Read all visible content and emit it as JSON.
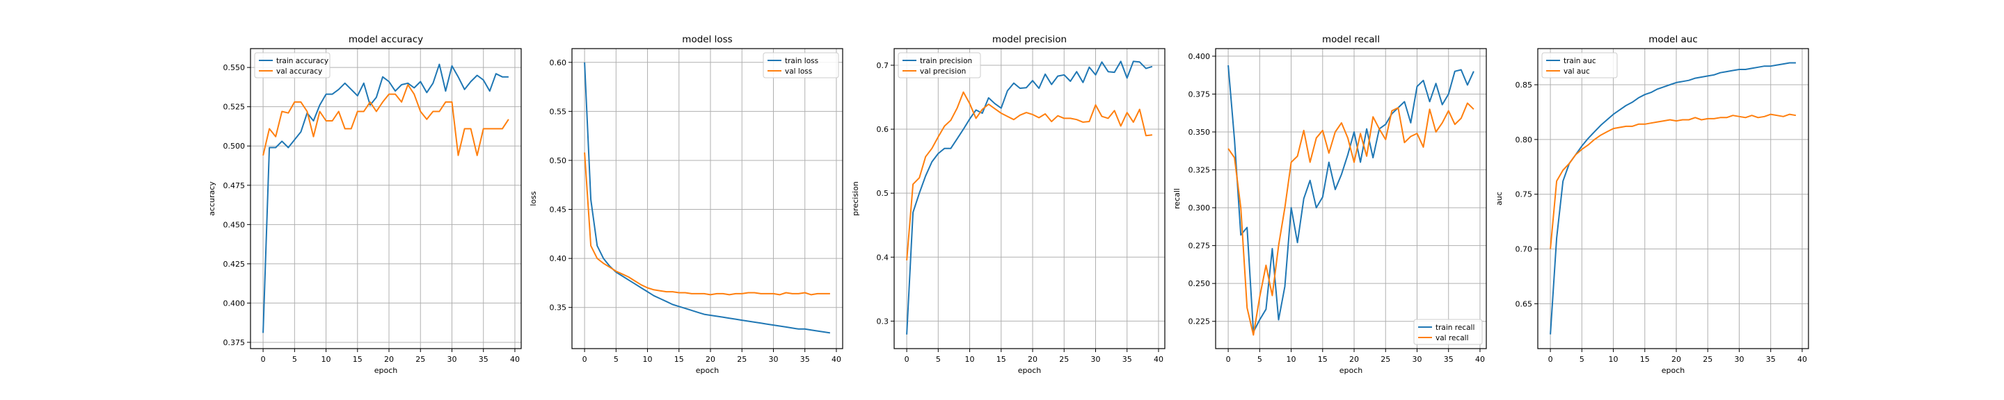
{
  "colors": {
    "train": "#1f77b4",
    "val": "#ff7f0e",
    "grid": "#b0b0b0",
    "axis": "#000000"
  },
  "chart_data": [
    {
      "type": "line",
      "title": "model accuracy",
      "xlabel": "epoch",
      "ylabel": "accuracy",
      "xlim": [
        -2,
        41
      ],
      "ylim": [
        0.371,
        0.562
      ],
      "xticks": [
        "0",
        "5",
        "10",
        "15",
        "20",
        "25",
        "30",
        "35",
        "40"
      ],
      "yticks": [
        "0.375",
        "0.400",
        "0.425",
        "0.450",
        "0.475",
        "0.500",
        "0.525",
        "0.550"
      ],
      "grid": true,
      "legend_position": "upper-left",
      "series": [
        {
          "name": "train accuracy",
          "color": "#1f77b4",
          "values": [
            0.381,
            0.499,
            0.499,
            0.503,
            0.499,
            0.504,
            0.509,
            0.521,
            0.516,
            0.526,
            0.533,
            0.533,
            0.536,
            0.54,
            0.536,
            0.532,
            0.54,
            0.526,
            0.531,
            0.544,
            0.541,
            0.535,
            0.539,
            0.54,
            0.537,
            0.541,
            0.534,
            0.54,
            0.552,
            0.535,
            0.551,
            0.544,
            0.536,
            0.541,
            0.545,
            0.542,
            0.535,
            0.546,
            0.544,
            0.544
          ]
        },
        {
          "name": "val accuracy",
          "color": "#ff7f0e",
          "values": [
            0.494,
            0.511,
            0.506,
            0.522,
            0.521,
            0.528,
            0.528,
            0.522,
            0.506,
            0.522,
            0.516,
            0.516,
            0.522,
            0.511,
            0.511,
            0.522,
            0.522,
            0.528,
            0.522,
            0.528,
            0.533,
            0.533,
            0.528,
            0.539,
            0.533,
            0.522,
            0.517,
            0.522,
            0.522,
            0.528,
            0.528,
            0.494,
            0.511,
            0.511,
            0.494,
            0.511,
            0.511,
            0.511,
            0.511,
            0.517
          ]
        }
      ]
    },
    {
      "type": "line",
      "title": "model loss",
      "xlabel": "epoch",
      "ylabel": "loss",
      "xlim": [
        -2,
        41
      ],
      "ylim": [
        0.308,
        0.614
      ],
      "xticks": [
        "0",
        "5",
        "10",
        "15",
        "20",
        "25",
        "30",
        "35",
        "40"
      ],
      "yticks": [
        "0.35",
        "0.40",
        "0.45",
        "0.50",
        "0.55",
        "0.60"
      ],
      "grid": true,
      "legend_position": "upper-right",
      "series": [
        {
          "name": "train loss",
          "color": "#1f77b4",
          "values": [
            0.6,
            0.46,
            0.413,
            0.4,
            0.392,
            0.386,
            0.382,
            0.378,
            0.374,
            0.37,
            0.366,
            0.362,
            0.359,
            0.356,
            0.353,
            0.351,
            0.349,
            0.347,
            0.345,
            0.343,
            0.342,
            0.341,
            0.34,
            0.339,
            0.338,
            0.337,
            0.336,
            0.335,
            0.334,
            0.333,
            0.332,
            0.331,
            0.33,
            0.329,
            0.328,
            0.328,
            0.327,
            0.326,
            0.325,
            0.324
          ]
        },
        {
          "name": "val loss",
          "color": "#ff7f0e",
          "values": [
            0.508,
            0.413,
            0.4,
            0.395,
            0.391,
            0.387,
            0.384,
            0.381,
            0.377,
            0.373,
            0.37,
            0.368,
            0.367,
            0.366,
            0.366,
            0.365,
            0.365,
            0.364,
            0.364,
            0.364,
            0.363,
            0.364,
            0.364,
            0.363,
            0.364,
            0.364,
            0.365,
            0.365,
            0.364,
            0.364,
            0.364,
            0.363,
            0.365,
            0.364,
            0.364,
            0.365,
            0.363,
            0.364,
            0.364,
            0.364
          ]
        }
      ]
    },
    {
      "type": "line",
      "title": "model precision",
      "xlabel": "epoch",
      "ylabel": "precision",
      "xlim": [
        -2,
        41
      ],
      "ylim": [
        0.257,
        0.726
      ],
      "xticks": [
        "0",
        "5",
        "10",
        "15",
        "20",
        "25",
        "30",
        "35",
        "40"
      ],
      "yticks": [
        "0.3",
        "0.4",
        "0.5",
        "0.6",
        "0.7"
      ],
      "grid": true,
      "legend_position": "upper-left",
      "series": [
        {
          "name": "train precision",
          "color": "#1f77b4",
          "values": [
            0.279,
            0.47,
            0.5,
            0.527,
            0.549,
            0.562,
            0.57,
            0.57,
            0.585,
            0.6,
            0.616,
            0.63,
            0.625,
            0.649,
            0.64,
            0.633,
            0.66,
            0.672,
            0.664,
            0.665,
            0.676,
            0.664,
            0.686,
            0.67,
            0.683,
            0.685,
            0.675,
            0.69,
            0.673,
            0.697,
            0.685,
            0.705,
            0.69,
            0.689,
            0.706,
            0.68,
            0.706,
            0.705,
            0.695,
            0.698
          ]
        },
        {
          "name": "val precision",
          "color": "#ff7f0e",
          "values": [
            0.395,
            0.514,
            0.524,
            0.557,
            0.57,
            0.588,
            0.605,
            0.614,
            0.633,
            0.658,
            0.64,
            0.617,
            0.631,
            0.639,
            0.632,
            0.625,
            0.62,
            0.615,
            0.622,
            0.626,
            0.623,
            0.618,
            0.624,
            0.612,
            0.621,
            0.617,
            0.617,
            0.615,
            0.611,
            0.612,
            0.638,
            0.62,
            0.617,
            0.629,
            0.605,
            0.626,
            0.611,
            0.631,
            0.59,
            0.591
          ]
        }
      ]
    },
    {
      "type": "line",
      "title": "model recall",
      "xlabel": "epoch",
      "ylabel": "recall",
      "xlim": [
        -2,
        41
      ],
      "ylim": [
        0.207,
        0.405
      ],
      "xticks": [
        "0",
        "5",
        "10",
        "15",
        "20",
        "25",
        "30",
        "35",
        "40"
      ],
      "yticks": [
        "0.225",
        "0.250",
        "0.275",
        "0.300",
        "0.325",
        "0.350",
        "0.375",
        "0.400"
      ],
      "grid": true,
      "legend_position": "lower-right",
      "series": [
        {
          "name": "train recall",
          "color": "#1f77b4",
          "values": [
            0.394,
            0.345,
            0.282,
            0.287,
            0.218,
            0.226,
            0.233,
            0.273,
            0.226,
            0.248,
            0.3,
            0.277,
            0.306,
            0.318,
            0.3,
            0.307,
            0.33,
            0.312,
            0.322,
            0.335,
            0.35,
            0.33,
            0.352,
            0.333,
            0.352,
            0.355,
            0.362,
            0.366,
            0.37,
            0.356,
            0.38,
            0.384,
            0.37,
            0.382,
            0.368,
            0.375,
            0.39,
            0.391,
            0.381,
            0.39
          ]
        },
        {
          "name": "val recall",
          "color": "#ff7f0e",
          "values": [
            0.339,
            0.333,
            0.3,
            0.234,
            0.216,
            0.241,
            0.262,
            0.242,
            0.275,
            0.3,
            0.33,
            0.334,
            0.351,
            0.33,
            0.346,
            0.351,
            0.336,
            0.35,
            0.356,
            0.346,
            0.33,
            0.349,
            0.334,
            0.36,
            0.352,
            0.345,
            0.364,
            0.366,
            0.343,
            0.347,
            0.349,
            0.34,
            0.365,
            0.35,
            0.356,
            0.364,
            0.355,
            0.359,
            0.369,
            0.365
          ]
        }
      ]
    },
    {
      "type": "line",
      "title": "model auc",
      "xlabel": "epoch",
      "ylabel": "auc",
      "xlim": [
        -2,
        41
      ],
      "ylim": [
        0.609,
        0.883
      ],
      "xticks": [
        "0",
        "5",
        "10",
        "15",
        "20",
        "25",
        "30",
        "35",
        "40"
      ],
      "yticks": [
        "0.65",
        "0.70",
        "0.75",
        "0.80",
        "0.85"
      ],
      "grid": true,
      "legend_position": "upper-left",
      "series": [
        {
          "name": "train auc",
          "color": "#1f77b4",
          "values": [
            0.622,
            0.71,
            0.762,
            0.778,
            0.786,
            0.794,
            0.801,
            0.807,
            0.813,
            0.818,
            0.823,
            0.827,
            0.831,
            0.834,
            0.838,
            0.841,
            0.843,
            0.846,
            0.848,
            0.85,
            0.852,
            0.853,
            0.854,
            0.856,
            0.857,
            0.858,
            0.859,
            0.861,
            0.862,
            0.863,
            0.864,
            0.864,
            0.865,
            0.866,
            0.867,
            0.867,
            0.868,
            0.869,
            0.87,
            0.87
          ]
        },
        {
          "name": "val auc",
          "color": "#ff7f0e",
          "values": [
            0.7,
            0.762,
            0.772,
            0.778,
            0.786,
            0.791,
            0.795,
            0.8,
            0.804,
            0.807,
            0.81,
            0.811,
            0.812,
            0.812,
            0.814,
            0.814,
            0.815,
            0.816,
            0.817,
            0.818,
            0.817,
            0.818,
            0.818,
            0.82,
            0.818,
            0.819,
            0.819,
            0.82,
            0.82,
            0.822,
            0.821,
            0.82,
            0.822,
            0.82,
            0.821,
            0.823,
            0.822,
            0.821,
            0.823,
            0.822
          ]
        }
      ]
    }
  ]
}
